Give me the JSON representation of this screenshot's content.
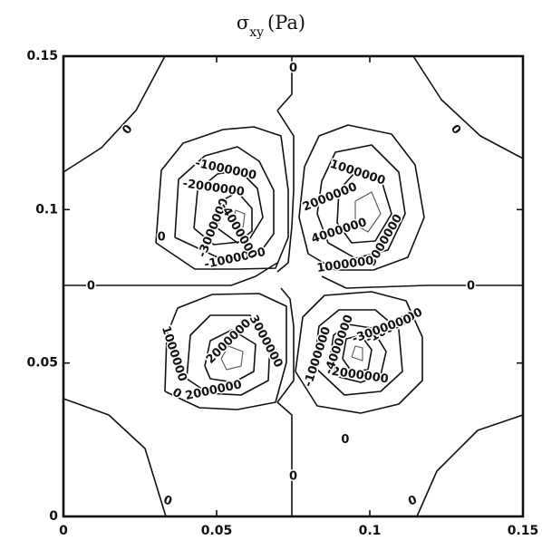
{
  "chart_data": {
    "type": "contour",
    "title": "σxy (Pa)",
    "title_symbol": "σ",
    "title_subscript": "xy",
    "title_unit": "(Pa)",
    "xlim": [
      0,
      0.15
    ],
    "ylim": [
      0,
      0.15
    ],
    "x_ticks": [
      0,
      0.05,
      0.1,
      0.15
    ],
    "y_ticks": [
      0,
      0.05,
      0.1,
      0.15
    ],
    "x_tick_labels": [
      "0",
      "0.05",
      "0.1",
      "0.15"
    ],
    "y_tick_labels": [
      "0",
      "0.05",
      "0.1",
      "0.15"
    ],
    "xlabel": "",
    "ylabel": "",
    "grid": false,
    "contour_levels": [
      -4000000,
      -3000000,
      -2000000,
      -1000000,
      0,
      1000000,
      2000000,
      3000000,
      4000000
    ],
    "contour_labels": [
      {
        "text": "0",
        "x": 0.075,
        "y": 0.146,
        "rot": 0
      },
      {
        "text": "0",
        "x": 0.021,
        "y": 0.126,
        "rot": -50
      },
      {
        "text": "0",
        "x": 0.128,
        "y": 0.126,
        "rot": 50
      },
      {
        "text": "0",
        "x": 0.009,
        "y": 0.075,
        "rot": 0
      },
      {
        "text": "0",
        "x": 0.133,
        "y": 0.075,
        "rot": 0
      },
      {
        "text": "0",
        "x": 0.032,
        "y": 0.091,
        "rot": 0
      },
      {
        "text": "0",
        "x": 0.037,
        "y": 0.04,
        "rot": 30
      },
      {
        "text": "0",
        "x": 0.092,
        "y": 0.025,
        "rot": 0
      },
      {
        "text": "0",
        "x": 0.075,
        "y": 0.013,
        "rot": 0
      },
      {
        "text": "0",
        "x": 0.034,
        "y": 0.005,
        "rot": 20
      },
      {
        "text": "0",
        "x": 0.114,
        "y": 0.005,
        "rot": -20
      },
      {
        "text": "-1000000",
        "x": 0.053,
        "y": 0.113,
        "rot": 12
      },
      {
        "text": "-1000000",
        "x": 0.056,
        "y": 0.084,
        "rot": -12
      },
      {
        "text": "-2000000",
        "x": 0.049,
        "y": 0.107,
        "rot": 8
      },
      {
        "text": "-3000000",
        "x": 0.049,
        "y": 0.094,
        "rot": -68
      },
      {
        "text": "-4000000",
        "x": 0.057,
        "y": 0.093,
        "rot": 60
      },
      {
        "text": "1000000",
        "x": 0.096,
        "y": 0.112,
        "rot": 18
      },
      {
        "text": "2000000",
        "x": 0.087,
        "y": 0.104,
        "rot": -22
      },
      {
        "text": "3000000",
        "x": 0.105,
        "y": 0.09,
        "rot": -60
      },
      {
        "text": "4000000",
        "x": 0.09,
        "y": 0.093,
        "rot": -18
      },
      {
        "text": "1000000",
        "x": 0.092,
        "y": 0.082,
        "rot": -8
      },
      {
        "text": "1000000",
        "x": 0.036,
        "y": 0.053,
        "rot": 72
      },
      {
        "text": "2000000",
        "x": 0.054,
        "y": 0.057,
        "rot": -45
      },
      {
        "text": "2000000",
        "x": 0.049,
        "y": 0.041,
        "rot": -12
      },
      {
        "text": "3000000",
        "x": 0.066,
        "y": 0.057,
        "rot": 62
      },
      {
        "text": "-1000000",
        "x": 0.083,
        "y": 0.052,
        "rot": -72
      },
      {
        "text": "-1000000",
        "x": 0.108,
        "y": 0.062,
        "rot": -28
      },
      {
        "text": "-2000000",
        "x": 0.096,
        "y": 0.046,
        "rot": 8
      },
      {
        "text": "-3000000",
        "x": 0.104,
        "y": 0.061,
        "rot": -20
      },
      {
        "text": "-4000000",
        "x": 0.09,
        "y": 0.056,
        "rot": -70
      }
    ]
  }
}
